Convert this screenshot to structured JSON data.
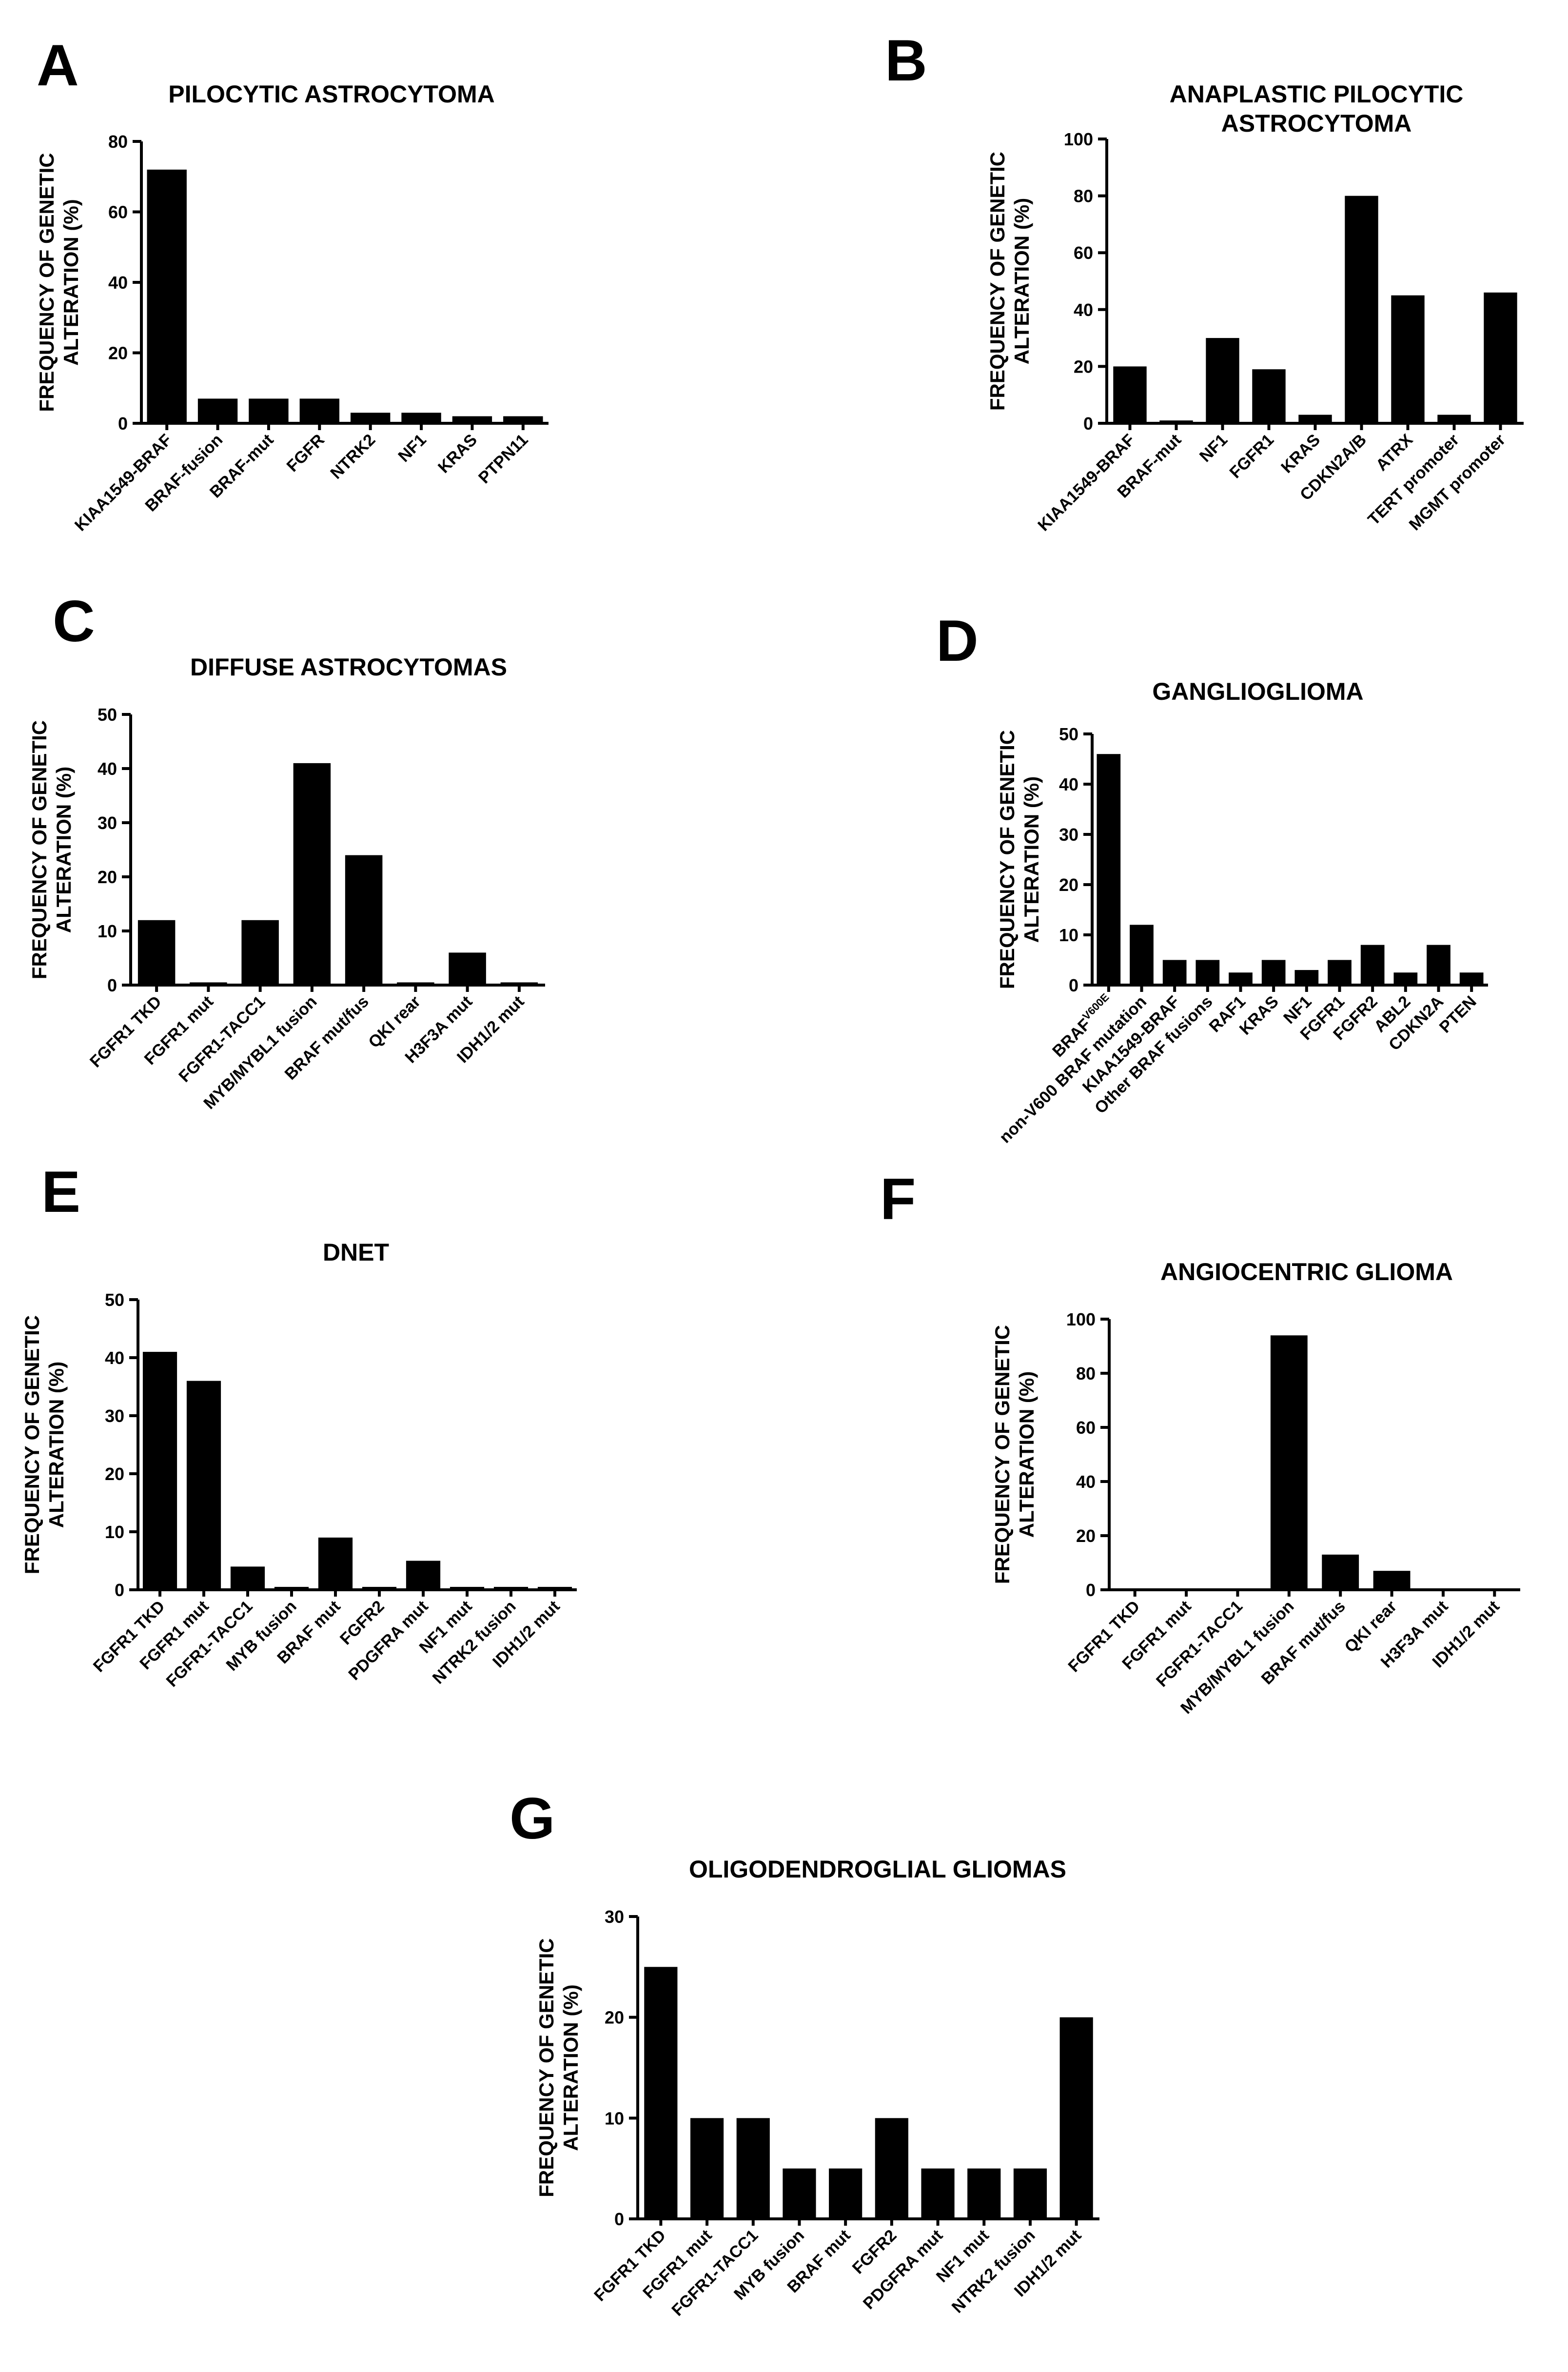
{
  "colors": {
    "bar": "#000000",
    "axis": "#000000",
    "background": "#ffffff"
  },
  "chart_data": [
    {
      "letter": "A",
      "type": "bar",
      "title": [
        "PILOCYTIC  ASTROCYTOMA"
      ],
      "ylabel": [
        "FREQUENCY OF GENETIC",
        "ALTERATION (%)"
      ],
      "xlabel": "",
      "ylim": [
        0,
        80
      ],
      "yticks": [
        0,
        20,
        40,
        60,
        80
      ],
      "categories": [
        "KIAA1549-BRAF",
        "BRAF-fusion",
        "BRAF-mut",
        "FGFR",
        "NTRK2",
        "NF1",
        "KRAS",
        "PTPN11"
      ],
      "values": [
        72,
        7,
        7,
        7,
        3,
        3,
        2,
        2
      ]
    },
    {
      "letter": "B",
      "type": "bar",
      "title": [
        "ANAPLASTIC PILOCYTIC",
        "ASTROCYTOMA"
      ],
      "ylabel": [
        "FREQUENCY OF GENETIC",
        "ALTERATION (%)"
      ],
      "xlabel": "",
      "ylim": [
        0,
        100
      ],
      "yticks": [
        0,
        20,
        40,
        60,
        80,
        100
      ],
      "categories": [
        "KIAA1549-BRAF",
        "BRAF-mut",
        "NF1",
        "FGFR1",
        "KRAS",
        "CDKN2A/B",
        "ATRX",
        "TERT promoter",
        "MGMT promoter"
      ],
      "values": [
        20,
        1,
        30,
        19,
        3,
        80,
        45,
        3,
        46
      ]
    },
    {
      "letter": "C",
      "type": "bar",
      "title": [
        "DIFFUSE ASTROCYTOMAS"
      ],
      "ylabel": [
        "FREQUENCY OF GENETIC",
        "ALTERATION (%)"
      ],
      "xlabel": "",
      "ylim": [
        0,
        50
      ],
      "yticks": [
        0,
        10,
        20,
        30,
        40,
        50
      ],
      "categories": [
        "FGFR1 TKD",
        "FGFR1 mut",
        "FGFR1-TACC1",
        "MYB/MYBL1 fusion",
        "BRAF mut/fus",
        "QKI rear",
        "H3F3A mut",
        "IDH1/2 mut"
      ],
      "values": [
        12,
        0.5,
        12,
        41,
        24,
        0.5,
        6,
        0.5
      ]
    },
    {
      "letter": "D",
      "type": "bar",
      "title": [
        "GANGLIOGLIOMA"
      ],
      "ylabel": [
        "FREQUENCY OF GENETIC",
        "ALTERATION (%)"
      ],
      "xlabel": "",
      "ylim": [
        0,
        50
      ],
      "yticks": [
        0,
        10,
        20,
        30,
        40,
        50
      ],
      "categories": [
        "BRAF",
        "non-V600 BRAF mutation",
        "KIAA1549-BRAF",
        "Other BRAF fusions",
        "RAF1",
        "KRAS",
        "NF1",
        "FGFR1",
        "FGFR2",
        "ABL2",
        "CDKN2A",
        "PTEN"
      ],
      "category_superscripts": [
        "V600E",
        "",
        "",
        "",
        "",
        "",
        "",
        "",
        "",
        "",
        "",
        ""
      ],
      "values": [
        46,
        12,
        5,
        5,
        2.5,
        5,
        3,
        5,
        8,
        2.5,
        8,
        2.5
      ]
    },
    {
      "letter": "E",
      "type": "bar",
      "title": [
        "DNET"
      ],
      "ylabel": [
        "FREQUENCY OF GENETIC",
        "ALTERATION (%)"
      ],
      "xlabel": "",
      "ylim": [
        0,
        50
      ],
      "yticks": [
        0,
        10,
        20,
        30,
        40,
        50
      ],
      "categories": [
        "FGFR1 TKD",
        "FGFR1 mut",
        "FGFR1-TACC1",
        "MYB fusion",
        "BRAF mut",
        "FGFR2",
        "PDGFRA mut",
        "NF1 mut",
        "NTRK2 fusion",
        "IDH1/2 mut"
      ],
      "values": [
        41,
        36,
        4,
        0.5,
        9,
        0.5,
        5,
        0.5,
        0.5,
        0.5
      ]
    },
    {
      "letter": "F",
      "type": "bar",
      "title": [
        "ANGIOCENTRIC GLIOMA"
      ],
      "ylabel": [
        "FREQUENCY OF GENETIC",
        "ALTERATION (%)"
      ],
      "xlabel": "",
      "ylim": [
        0,
        100
      ],
      "yticks": [
        0,
        20,
        40,
        60,
        80,
        100
      ],
      "categories": [
        "FGFR1 TKD",
        "FGFR1 mut",
        "FGFR1-TACC1",
        "MYB/MYBL1 fusion",
        "BRAF mut/fus",
        "QKI rear",
        "H3F3A mut",
        "IDH1/2 mut"
      ],
      "values": [
        0.5,
        0.5,
        0.5,
        94,
        13,
        7,
        0.5,
        0.5
      ]
    },
    {
      "letter": "G",
      "type": "bar",
      "title": [
        "OLIGODENDROGLIAL GLIOMAS"
      ],
      "ylabel": [
        "FREQUENCY OF GENETIC",
        "ALTERATION (%)"
      ],
      "xlabel": "",
      "ylim": [
        0,
        30
      ],
      "yticks": [
        0,
        10,
        20,
        30
      ],
      "categories": [
        "FGFR1 TKD",
        "FGFR1 mut",
        "FGFR1-TACC1",
        "MYB fusion",
        "BRAF mut",
        "FGFR2",
        "PDGFRA mut",
        "NF1 mut",
        "NTRK2 fusion",
        "IDH1/2 mut"
      ],
      "values": [
        25,
        10,
        10,
        5,
        5,
        10,
        5,
        5,
        5,
        20
      ]
    }
  ]
}
